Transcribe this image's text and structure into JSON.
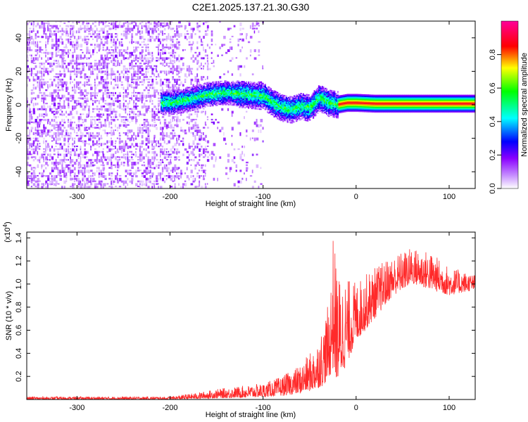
{
  "figure": {
    "title": "C2E1.2025.137.21.30.G30"
  },
  "chart_data": [
    {
      "type": "heatmap",
      "name": "spectrogram",
      "xlabel": "Height of straight line (km)",
      "ylabel": "Frequency (Hz)",
      "xlim": [
        -354,
        128
      ],
      "ylim": [
        -50,
        50
      ],
      "xticks": [
        -300,
        -200,
        -100,
        0,
        100
      ],
      "yticks": [
        -40,
        -20,
        0,
        20,
        40
      ],
      "colorbar": {
        "label": "Normalized spectral amplitude",
        "range": [
          0,
          1
        ],
        "ticks": [
          0.0,
          0.2,
          0.4,
          0.6,
          0.8
        ],
        "colormap": [
          "#ffffff",
          "#8a00ff",
          "#0000ff",
          "#00ffff",
          "#00ff00",
          "#ffff00",
          "#ff0000",
          "#ff00aa"
        ]
      },
      "ridge": {
        "description_free": true,
        "x": [
          -200,
          -180,
          -160,
          -140,
          -120,
          -100,
          -90,
          -80,
          -70,
          -60,
          -50,
          -40,
          -30,
          -20,
          -10,
          0,
          20,
          60,
          100,
          120
        ],
        "y": [
          1,
          3,
          6,
          7,
          6,
          5,
          1,
          -2,
          -3,
          -1,
          -2,
          4,
          1,
          0,
          1,
          1,
          0.5,
          0.5,
          0.5,
          0.5
        ]
      }
    },
    {
      "type": "line",
      "name": "snr",
      "xlabel": "Height of straight line (km)",
      "ylabel": "SNR (10 * v/v)",
      "yscale_label": "(x10",
      "yscale_exp": "4",
      "yscale_close": ")",
      "xlim": [
        -354,
        128
      ],
      "ylim": [
        0,
        14500
      ],
      "xticks": [
        -300,
        -200,
        -100,
        0,
        100
      ],
      "yticks": [
        2000,
        4000,
        6000,
        8000,
        10000,
        12000,
        14000
      ],
      "ytick_labels": [
        "0.2",
        "0.4",
        "0.6",
        "0.8",
        "1.0",
        "1.2",
        "1.4"
      ],
      "color": "#ff2a2a",
      "envelope": {
        "x": [
          -354,
          -200,
          -170,
          -150,
          -120,
          -100,
          -80,
          -60,
          -45,
          -35,
          -28,
          -25,
          -20,
          -10,
          0,
          20,
          40,
          60,
          80,
          100,
          128
        ],
        "top": [
          250,
          250,
          600,
          900,
          1200,
          1400,
          2000,
          3000,
          4500,
          6500,
          9000,
          14500,
          11000,
          10500,
          10200,
          11500,
          12500,
          13200,
          12800,
          11500,
          10800
        ],
        "low": [
          0,
          0,
          50,
          100,
          150,
          200,
          300,
          500,
          800,
          1200,
          2000,
          2500,
          1500,
          3000,
          5000,
          7000,
          9000,
          10000,
          9500,
          9000,
          9500
        ]
      }
    }
  ]
}
